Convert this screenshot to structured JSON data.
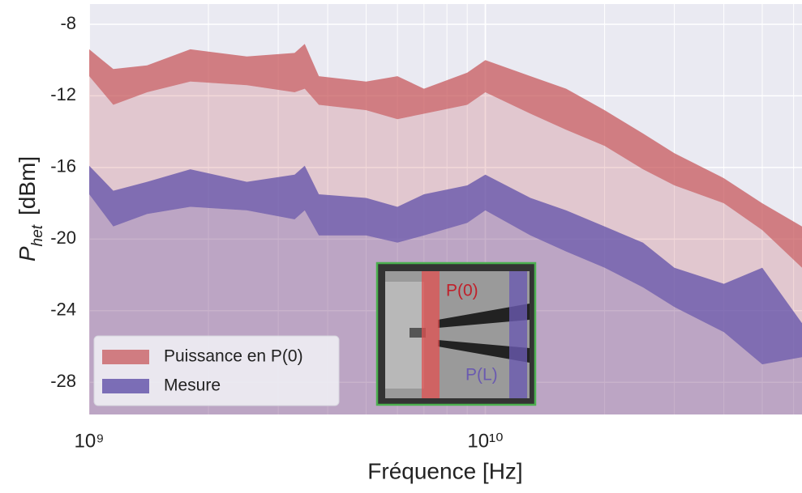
{
  "chart_data": {
    "type": "band",
    "xlabel": "Fréquence [Hz]",
    "ylabel": {
      "symbol": "P",
      "subscript": "het",
      "unit": "[dBm]"
    },
    "xscale": "log",
    "xlim": [
      1000000000,
      63000000000
    ],
    "ylim": [
      -29.8,
      -6.87
    ],
    "xticks": [
      {
        "value": 1000000000,
        "label": "10⁹"
      },
      {
        "value": 10000000000,
        "label": "10¹⁰"
      }
    ],
    "xminorticks": [
      2000000000,
      3000000000,
      4000000000,
      5000000000,
      6000000000,
      7000000000,
      8000000000,
      9000000000,
      20000000000,
      30000000000,
      40000000000,
      50000000000,
      60000000000
    ],
    "yticks": [
      -28,
      -24,
      -20,
      -16,
      -12,
      -8
    ],
    "grid": true,
    "legend": "lower left",
    "x": [
      1000000000,
      1150000000,
      1400000000,
      1800000000,
      2500000000,
      3300000000,
      3500000000,
      3800000000,
      5000000000,
      6000000000,
      7000000000,
      9000000000,
      10000000000,
      13000000000,
      16000000000,
      20000000000,
      25000000000,
      30000000000,
      40000000000,
      50000000000,
      63000000000
    ],
    "series": [
      {
        "name": "Puissance en P(0)",
        "color": "#c44e52",
        "upper": [
          -9.4,
          -10.5,
          -10.3,
          -9.4,
          -9.8,
          -9.6,
          -9.1,
          -10.9,
          -11.2,
          -10.9,
          -11.6,
          -10.7,
          -10.0,
          -10.9,
          -11.6,
          -12.8,
          -14.1,
          -15.2,
          -16.6,
          -18.0,
          -19.3
        ],
        "lower": [
          -10.9,
          -12.5,
          -11.8,
          -11.2,
          -11.4,
          -11.8,
          -11.6,
          -12.5,
          -12.8,
          -13.3,
          -13.0,
          -12.5,
          -11.8,
          -13.0,
          -13.9,
          -14.8,
          -16.1,
          -17.0,
          -18.0,
          -19.5,
          -21.6
        ]
      },
      {
        "name": "Mesure",
        "color": "#5f4fa8",
        "upper": [
          -15.9,
          -17.3,
          -16.8,
          -16.1,
          -16.8,
          -16.4,
          -15.9,
          -17.5,
          -17.7,
          -18.2,
          -17.5,
          -17.0,
          -16.4,
          -17.7,
          -18.4,
          -19.3,
          -20.2,
          -21.6,
          -22.5,
          -21.6,
          -24.7
        ],
        "lower": [
          -17.5,
          -19.3,
          -18.6,
          -18.2,
          -18.4,
          -18.9,
          -18.4,
          -19.8,
          -19.8,
          -20.2,
          -19.8,
          -19.1,
          -18.4,
          -19.8,
          -20.7,
          -21.6,
          -22.7,
          -23.8,
          -25.2,
          -27.0,
          -26.6
        ]
      }
    ],
    "annotations": [
      "P(0)",
      "P(L)"
    ]
  }
}
